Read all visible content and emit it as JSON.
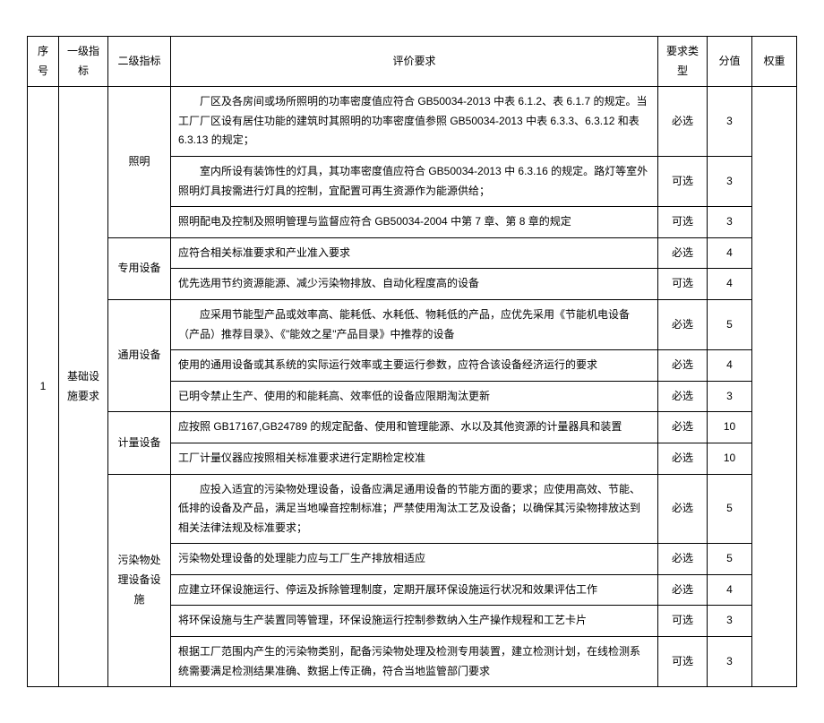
{
  "headers": {
    "seq": "序号",
    "level1": "一级指标",
    "level2": "二级指标",
    "requirement": "评价要求",
    "reqType": "要求类型",
    "score": "分值",
    "weight": "权重"
  },
  "seq": "1",
  "level1": "基础设施要求",
  "groups": [
    {
      "name": "照明",
      "rows": [
        {
          "text": "厂区及各房间或场所照明的功率密度值应符合 GB50034-2013 中表 6.1.2、表 6.1.7 的规定。当工厂厂区设有居住功能的建筑时其照明的功率密度值参照 GB50034-2013 中表 6.3.3、6.3.12 和表 6.3.13 的规定；",
          "type": "必选",
          "score": "3",
          "indent": true
        },
        {
          "text": "室内所设有装饰性的灯具，其功率密度值应符合 GB50034-2013 中 6.3.16 的规定。路灯等室外照明灯具按需进行灯具的控制，宜配置可再生资源作为能源供给；",
          "type": "可选",
          "score": "3",
          "indent": true
        },
        {
          "text": "照明配电及控制及照明管理与监督应符合 GB50034-2004 中第 7 章、第 8 章的规定",
          "type": "可选",
          "score": "3",
          "indent": false
        }
      ]
    },
    {
      "name": "专用设备",
      "rows": [
        {
          "text": "应符合相关标准要求和产业准入要求",
          "type": "必选",
          "score": "4",
          "indent": false
        },
        {
          "text": "优先选用节约资源能源、减少污染物排放、自动化程度高的设备",
          "type": "可选",
          "score": "4",
          "indent": false
        }
      ]
    },
    {
      "name": "通用设备",
      "rows": [
        {
          "text": "应采用节能型产品或效率高、能耗低、水耗低、物耗低的产品，应优先采用《节能机电设备（产品）推荐目录》、《\"能效之星\"产品目录》中推荐的设备",
          "type": "必选",
          "score": "5",
          "indent": true
        },
        {
          "text": "使用的通用设备或其系统的实际运行效率或主要运行参数，应符合该设备经济运行的要求",
          "type": "必选",
          "score": "4",
          "indent": false
        },
        {
          "text": "已明令禁止生产、使用的和能耗高、效率低的设备应限期淘汰更新",
          "type": "必选",
          "score": "3",
          "indent": false
        }
      ]
    },
    {
      "name": "计量设备",
      "rows": [
        {
          "text": "应按照 GB17167,GB24789 的规定配备、使用和管理能源、水以及其他资源的计量器具和装置",
          "type": "必选",
          "score": "10",
          "indent": false
        },
        {
          "text": "工厂计量仪器应按照相关标准要求进行定期检定校准",
          "type": "必选",
          "score": "10",
          "indent": false
        }
      ]
    },
    {
      "name": "污染物处理设备设施",
      "rows": [
        {
          "text": "应投入适宜的污染物处理设备，设备应满足通用设备的节能方面的要求；应使用高效、节能、低排的设备及产品，满足当地噪音控制标准；严禁使用淘汰工艺及设备；以确保其污染物排放达到相关法律法规及标准要求；",
          "type": "必选",
          "score": "5",
          "indent": true
        },
        {
          "text": "污染物处理设备的处理能力应与工厂生产排放相适应",
          "type": "必选",
          "score": "5",
          "indent": false
        },
        {
          "text": "应建立环保设施运行、停运及拆除管理制度，定期开展环保设施运行状况和效果评估工作",
          "type": "必选",
          "score": "4",
          "indent": false
        },
        {
          "text": "将环保设施与生产装置同等管理，环保设施运行控制参数纳入生产操作规程和工艺卡片",
          "type": "可选",
          "score": "3",
          "indent": false
        },
        {
          "text": "根据工厂范围内产生的污染物类别，配备污染物处理及检测专用装置，建立检测计划，在线检测系统需要满足检测结果准确、数据上传正确，符合当地监管部门要求",
          "type": "可选",
          "score": "3",
          "indent": false
        }
      ]
    }
  ]
}
